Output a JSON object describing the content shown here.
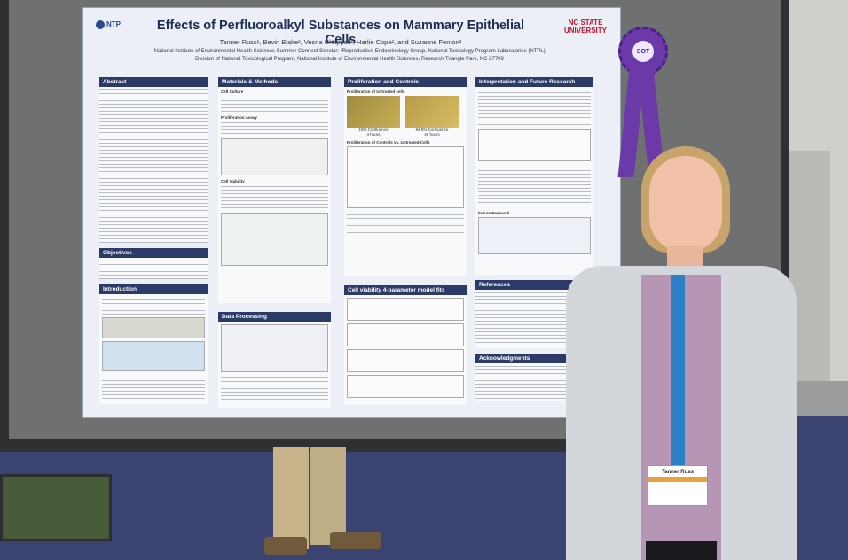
{
  "poster": {
    "logo_left": "NTP",
    "logo_right": "NC STATE UNIVERSITY",
    "title": "Effects of Perfluoroalkyl Substances on Mammary Epithelial Cells",
    "authors": "Tanner Russ¹, Bevin Blake², Vesna Chappell², Harlie Cope², and Suzanne Fenton²",
    "affiliation1": "¹National Institute of Environmental Health Sciences Summer Connect Scholar; ²Reproductive Endocrinology Group, National Toxicology Program Laboratories (NTPL),",
    "affiliation2": "Division of National Toxicological Program, National Institute of Environmental Health Sciences, Research Triangle Park, NC 27709",
    "sections": {
      "abstract": "Abstract",
      "objectives": "Objectives",
      "introduction": "Introduction",
      "materials_methods": "Materials & Methods",
      "data_processing": "Data Processing",
      "proliferation": "Proliferation and Controls",
      "cell_viability": "Cell viability 4-parameter model fits",
      "interpretation": "Interpretation and Future Research",
      "references": "References",
      "acknowledgments": "Acknowledgments"
    },
    "proliferation_sub": "Proliferation of Untreated cells",
    "proliferation_sub2": "Proliferation of Controls vs. Untreated Cells",
    "conf1": "15% Confluence",
    "time1": "4 hours",
    "conf2": "94.8% Confluence",
    "time2": "48 hours",
    "mm_sub1": "Cell Culture",
    "mm_sub2": "Proliferation Assay",
    "mm_sub3": "Cell Viability",
    "future_research": "Future Research"
  },
  "ribbon": {
    "text": "SOT"
  },
  "badge": {
    "name": "Tanner Russ"
  }
}
